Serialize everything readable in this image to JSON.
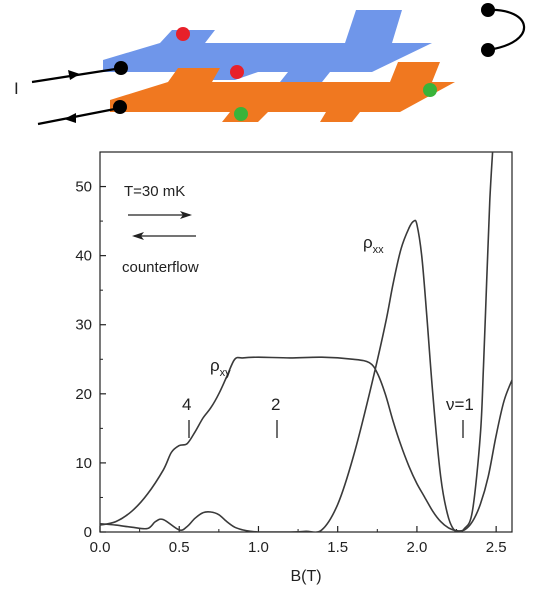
{
  "schematic": {
    "current_label": "I",
    "colors": {
      "top_layer": "#6f96ea",
      "bottom_layer": "#f07820",
      "lead": "#000000",
      "red_contact": "#e8202a",
      "green_contact": "#3ab33a"
    }
  },
  "chart_data": {
    "type": "line",
    "xlabel": "B(T)",
    "ylabel": "",
    "xlim": [
      0.0,
      2.6
    ],
    "ylim": [
      0,
      55
    ],
    "x_ticks": [
      "0.0",
      "0.5",
      "1.0",
      "1.5",
      "2.0",
      "2.5"
    ],
    "y_ticks": [
      "0",
      "10",
      "20",
      "30",
      "40",
      "50"
    ],
    "grid": false,
    "legend": "top-left",
    "legend_text": {
      "temperature": "T=30 mK",
      "mode": "counterflow"
    },
    "annotations": [
      {
        "text": "4",
        "x": 0.55
      },
      {
        "text": "2",
        "x": 1.1
      },
      {
        "text": "ν=1",
        "x": 2.28
      }
    ],
    "series": [
      {
        "name": "ρxy",
        "label_main": "ρ",
        "label_sub": "xy",
        "x": [
          0.0,
          0.1,
          0.2,
          0.3,
          0.4,
          0.45,
          0.5,
          0.55,
          0.6,
          0.65,
          0.7,
          0.75,
          0.8,
          0.85,
          0.9,
          1.0,
          1.2,
          1.4,
          1.6,
          1.7,
          1.75,
          1.8,
          1.85,
          1.9,
          1.95,
          2.0,
          2.05,
          2.1,
          2.15,
          2.2,
          2.25,
          2.3,
          2.35,
          2.4,
          2.45,
          2.5,
          2.55,
          2.6
        ],
        "y": [
          1.0,
          1.5,
          3.0,
          5.5,
          9.0,
          11.5,
          12.5,
          12.8,
          14.5,
          16.5,
          18.0,
          20.0,
          22.5,
          25.0,
          25.2,
          25.3,
          25.2,
          25.3,
          25.0,
          24.5,
          23.0,
          20.0,
          16.0,
          12.5,
          9.5,
          7.0,
          5.0,
          3.0,
          1.5,
          0.6,
          0.2,
          0.3,
          1.5,
          4.0,
          8.0,
          14.0,
          19.0,
          22.0
        ]
      },
      {
        "name": "ρxx",
        "label_main": "ρ",
        "label_sub": "xx",
        "x": [
          0.0,
          0.1,
          0.2,
          0.3,
          0.35,
          0.4,
          0.5,
          0.55,
          0.6,
          0.65,
          0.7,
          0.75,
          0.8,
          0.85,
          0.9,
          0.95,
          1.0,
          1.1,
          1.2,
          1.3,
          1.4,
          1.5,
          1.6,
          1.7,
          1.8,
          1.85,
          1.9,
          1.95,
          1.98,
          2.0,
          2.03,
          2.06,
          2.1,
          2.15,
          2.2,
          2.25,
          2.3,
          2.35,
          2.4,
          2.42,
          2.44,
          2.46,
          2.48
        ],
        "y": [
          1.2,
          1.0,
          0.7,
          0.5,
          1.5,
          1.8,
          0.3,
          0.8,
          2.0,
          2.8,
          2.9,
          2.5,
          1.5,
          0.7,
          0.3,
          0.1,
          0.0,
          0.0,
          0.0,
          0.1,
          0.3,
          4.0,
          11.0,
          20.0,
          30.0,
          36.0,
          41.0,
          44.0,
          45.0,
          44.5,
          40.0,
          32.0,
          20.0,
          8.0,
          2.0,
          0.0,
          0.5,
          3.0,
          14.0,
          24.0,
          36.0,
          48.0,
          56.0
        ]
      }
    ]
  }
}
